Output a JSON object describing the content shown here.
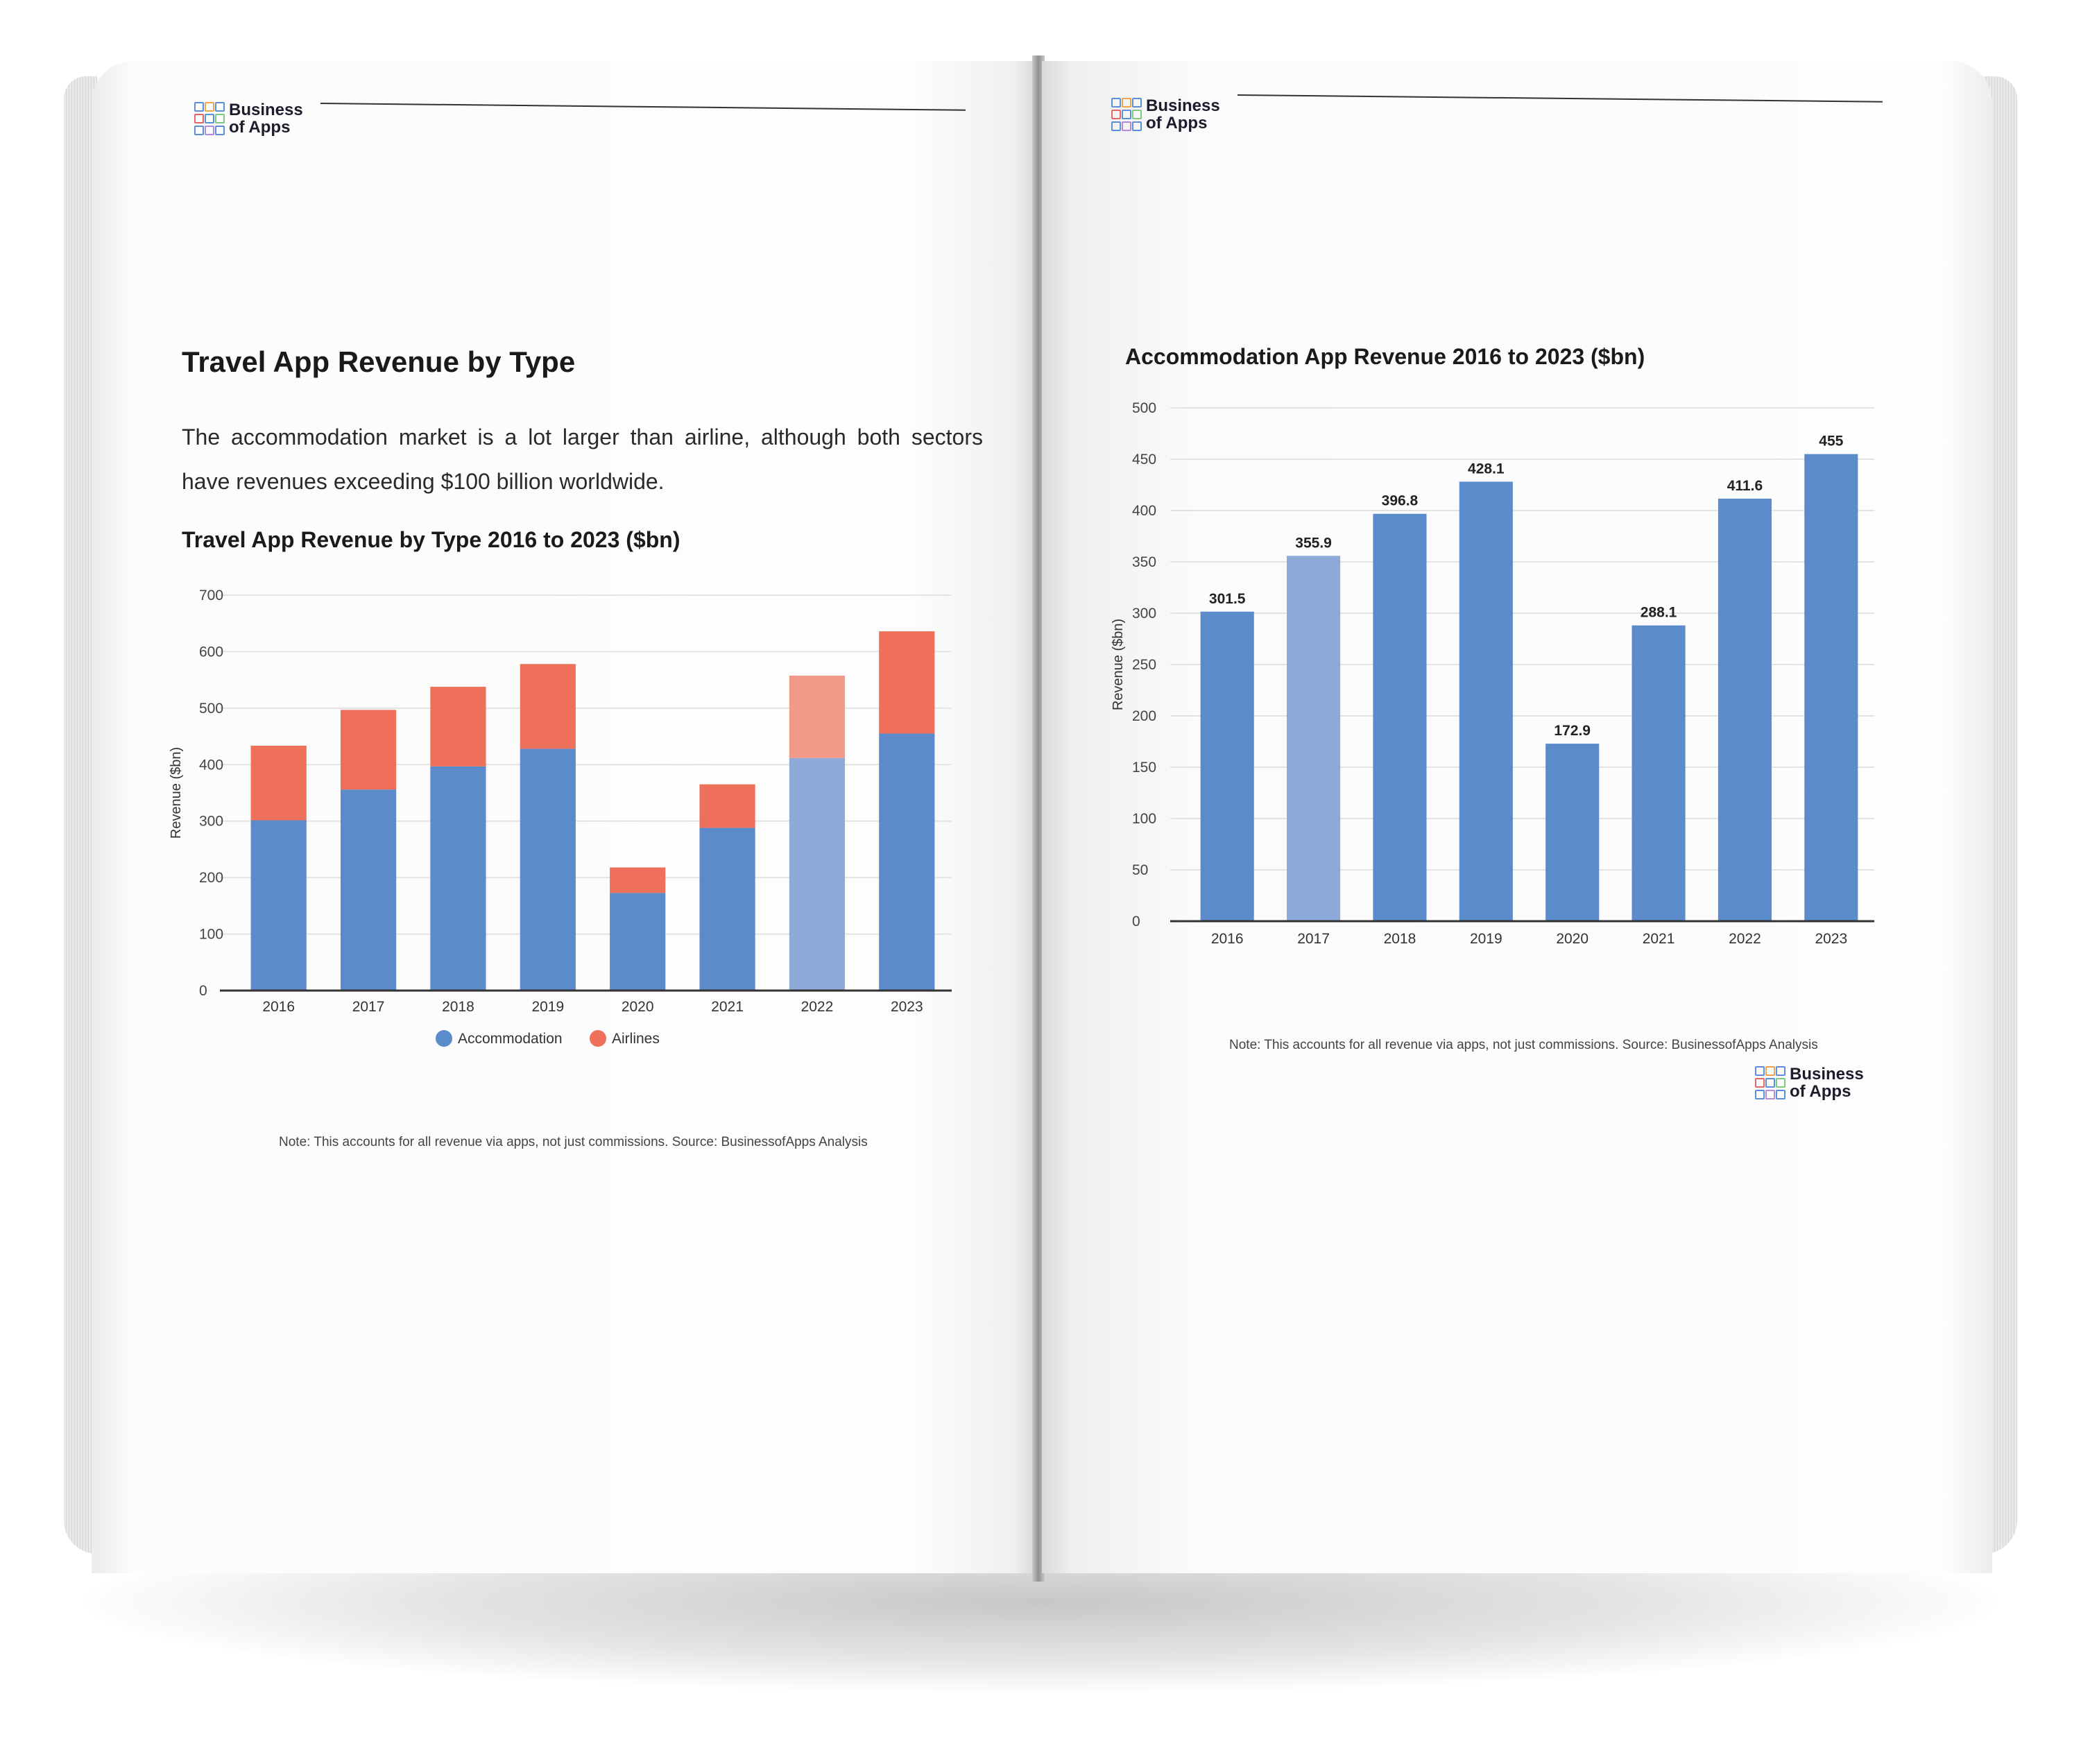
{
  "brand": {
    "line1": "Business",
    "line2": "of Apps"
  },
  "left_page": {
    "heading": "Travel App Revenue by Type",
    "paragraph": "The accommodation market is a lot larger than airline, although both sectors have revenues exceeding $100 billion worldwide.",
    "chart_title": "Travel App Revenue by Type 2016 to 2023 ($bn)",
    "note": "Note: This accounts for all revenue via apps, not just commissions. Source: BusinessofApps Analysis"
  },
  "right_page": {
    "chart_title": "Accommodation App Revenue 2016 to 2023 ($bn)",
    "note": "Note: This accounts for all revenue via apps, not just commissions. Source: BusinessofApps Analysis"
  },
  "colors": {
    "accommodation": "#5b8bcb",
    "airlines": "#ee6f5a",
    "accommodation_light": "#8eaad8",
    "airlines_light": "#f29a89"
  },
  "chart_data": [
    {
      "type": "bar",
      "stacked": true,
      "title": "Travel App Revenue by Type 2016 to 2023 ($bn)",
      "xlabel": "",
      "ylabel": "Revenue ($bn)",
      "ylim": [
        0,
        700
      ],
      "yticks": [
        0,
        100,
        200,
        300,
        400,
        500,
        600,
        700
      ],
      "categories": [
        "2016",
        "2017",
        "2018",
        "2019",
        "2020",
        "2021",
        "2022",
        "2023"
      ],
      "series": [
        {
          "name": "Accommodation",
          "values": [
            301.5,
            355.9,
            396.8,
            428.1,
            172.9,
            288.1,
            411.6,
            455
          ]
        },
        {
          "name": "Airlines",
          "values": [
            132,
            141,
            141,
            150,
            45,
            77,
            146,
            181
          ]
        }
      ],
      "legend": "bottom-center",
      "grid": true
    },
    {
      "type": "bar",
      "title": "Accommodation App Revenue 2016 to 2023 ($bn)",
      "xlabel": "",
      "ylabel": "Revenue ($bn)",
      "ylim": [
        0,
        500
      ],
      "yticks": [
        0,
        50,
        100,
        150,
        200,
        250,
        300,
        350,
        400,
        450,
        500
      ],
      "categories": [
        "2016",
        "2017",
        "2018",
        "2019",
        "2020",
        "2021",
        "2022",
        "2023"
      ],
      "values": [
        301.5,
        355.9,
        396.8,
        428.1,
        172.9,
        288.1,
        411.6,
        455
      ],
      "data_labels": [
        "301.5",
        "355.9",
        "396.8",
        "428.1",
        "172.9",
        "288.1",
        "411.6",
        "455"
      ],
      "grid": true
    }
  ]
}
